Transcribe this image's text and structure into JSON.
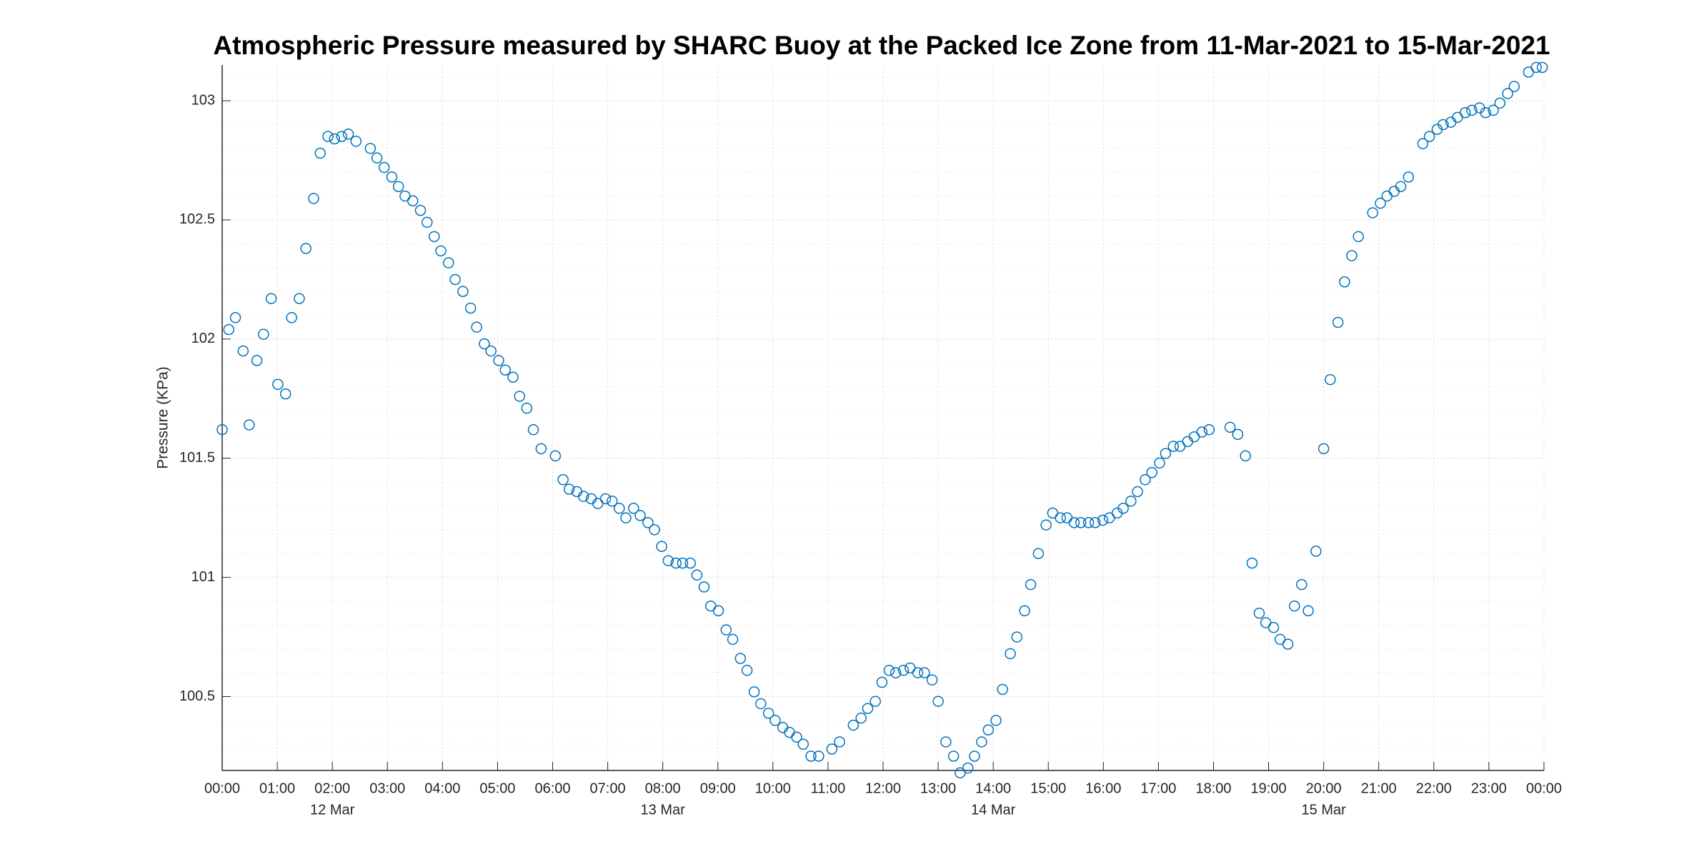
{
  "chart_data": {
    "type": "scatter",
    "title": "Atmospheric Pressure measured by SHARC Buoy at the Packed Ice Zone from 11-Mar-2021 to 15-Mar-2021",
    "y_label": "Pressure (KPa)",
    "series": [
      {
        "name": "Pressure",
        "color": "#0072bd",
        "x": [
          0,
          0.12,
          0.24,
          0.38,
          0.49,
          0.63,
          0.75,
          0.89,
          1.01,
          1.15,
          1.26,
          1.4,
          1.52,
          1.66,
          1.78,
          1.92,
          2.04,
          2.17,
          2.29,
          2.43,
          2.69,
          2.81,
          2.94,
          3.08,
          3.2,
          3.32,
          3.46,
          3.6,
          3.72,
          3.85,
          3.97,
          4.11,
          4.23,
          4.37,
          4.51,
          4.62,
          4.76,
          4.88,
          5.02,
          5.14,
          5.28,
          5.4,
          5.53,
          5.65,
          5.79,
          6.05,
          6.19,
          6.3,
          6.44,
          6.56,
          6.7,
          6.82,
          6.96,
          7.08,
          7.21,
          7.33,
          7.47,
          7.59,
          7.73,
          7.85,
          7.98,
          8.1,
          8.24,
          8.36,
          8.5,
          8.62,
          8.75,
          8.87,
          9.01,
          9.15,
          9.27,
          9.41,
          9.53,
          9.66,
          9.78,
          9.92,
          10.04,
          10.18,
          10.3,
          10.43,
          10.55,
          10.69,
          10.83,
          11.07,
          11.21,
          11.46,
          11.6,
          11.72,
          11.86,
          11.98,
          12.11,
          12.23,
          12.37,
          12.49,
          12.63,
          12.75,
          12.89,
          13.0,
          13.14,
          13.28,
          13.4,
          13.54,
          13.66,
          13.79,
          13.91,
          14.05,
          14.17,
          14.31,
          14.43,
          14.57,
          14.68,
          14.82,
          14.96,
          15.08,
          15.22,
          15.34,
          15.47,
          15.59,
          15.73,
          15.85,
          15.99,
          16.11,
          16.25,
          16.36,
          16.5,
          16.62,
          16.76,
          16.88,
          17.02,
          17.13,
          17.27,
          17.39,
          17.53,
          17.65,
          17.79,
          17.92,
          18.3,
          18.44,
          18.58,
          18.7,
          18.83,
          18.95,
          19.09,
          19.21,
          19.35,
          19.47,
          19.6,
          19.72,
          19.86,
          20.0,
          20.12,
          20.26,
          20.38,
          20.51,
          20.63,
          20.89,
          21.03,
          21.15,
          21.28,
          21.4,
          21.54,
          21.8,
          21.92,
          22.06,
          22.17,
          22.31,
          22.43,
          22.57,
          22.69,
          22.83,
          22.94,
          23.08,
          23.2,
          23.34,
          23.46,
          23.72,
          23.86,
          23.97
        ],
        "values": [
          101.62,
          102.04,
          102.09,
          101.95,
          101.64,
          101.91,
          102.02,
          102.17,
          101.81,
          101.77,
          102.09,
          102.17,
          102.38,
          102.59,
          102.78,
          102.85,
          102.84,
          102.85,
          102.86,
          102.83,
          102.8,
          102.76,
          102.72,
          102.68,
          102.64,
          102.6,
          102.58,
          102.54,
          102.49,
          102.43,
          102.37,
          102.32,
          102.25,
          102.2,
          102.13,
          102.05,
          101.98,
          101.95,
          101.91,
          101.87,
          101.84,
          101.76,
          101.71,
          101.62,
          101.54,
          101.51,
          101.41,
          101.37,
          101.36,
          101.34,
          101.33,
          101.31,
          101.33,
          101.32,
          101.29,
          101.25,
          101.29,
          101.26,
          101.23,
          101.2,
          101.13,
          101.07,
          101.06,
          101.06,
          101.06,
          101.01,
          100.96,
          100.88,
          100.86,
          100.78,
          100.74,
          100.66,
          100.61,
          100.52,
          100.47,
          100.43,
          100.4,
          100.37,
          100.35,
          100.33,
          100.3,
          100.25,
          100.25,
          100.28,
          100.31,
          100.38,
          100.41,
          100.45,
          100.48,
          100.56,
          100.61,
          100.6,
          100.61,
          100.62,
          100.6,
          100.6,
          100.57,
          100.48,
          100.31,
          100.25,
          100.18,
          100.2,
          100.25,
          100.31,
          100.36,
          100.4,
          100.53,
          100.68,
          100.75,
          100.86,
          100.97,
          101.1,
          101.22,
          101.27,
          101.25,
          101.25,
          101.23,
          101.23,
          101.23,
          101.23,
          101.24,
          101.25,
          101.27,
          101.29,
          101.32,
          101.36,
          101.41,
          101.44,
          101.48,
          101.52,
          101.55,
          101.55,
          101.57,
          101.59,
          101.61,
          101.62,
          101.63,
          101.6,
          101.51,
          101.06,
          100.85,
          100.81,
          100.79,
          100.74,
          100.72,
          100.88,
          100.97,
          100.86,
          101.11,
          101.54,
          101.83,
          102.07,
          102.24,
          102.35,
          102.43,
          102.53,
          102.57,
          102.6,
          102.62,
          102.64,
          102.68,
          102.82,
          102.85,
          102.88,
          102.9,
          102.91,
          102.93,
          102.95,
          102.96,
          102.97,
          102.95,
          102.96,
          102.99,
          103.03,
          103.06,
          103.12,
          103.14,
          103.14
        ]
      }
    ],
    "xlim": [
      0,
      24
    ],
    "xticks": [
      {
        "value": 0,
        "label": "00:00"
      },
      {
        "value": 1,
        "label": "01:00"
      },
      {
        "value": 2,
        "label": "02:00"
      },
      {
        "value": 3,
        "label": "03:00"
      },
      {
        "value": 4,
        "label": "04:00"
      },
      {
        "value": 5,
        "label": "05:00"
      },
      {
        "value": 6,
        "label": "06:00"
      },
      {
        "value": 7,
        "label": "07:00"
      },
      {
        "value": 8,
        "label": "08:00"
      },
      {
        "value": 9,
        "label": "09:00"
      },
      {
        "value": 10,
        "label": "10:00"
      },
      {
        "value": 11,
        "label": "11:00"
      },
      {
        "value": 12,
        "label": "12:00"
      },
      {
        "value": 13,
        "label": "13:00"
      },
      {
        "value": 14,
        "label": "14:00"
      },
      {
        "value": 15,
        "label": "15:00"
      },
      {
        "value": 16,
        "label": "16:00"
      },
      {
        "value": 17,
        "label": "17:00"
      },
      {
        "value": 18,
        "label": "18:00"
      },
      {
        "value": 19,
        "label": "19:00"
      },
      {
        "value": 20,
        "label": "20:00"
      },
      {
        "value": 21,
        "label": "21:00"
      },
      {
        "value": 22,
        "label": "22:00"
      },
      {
        "value": 23,
        "label": "23:00"
      },
      {
        "value": 24,
        "label": "00:00"
      }
    ],
    "xtick_dates": [
      {
        "value": 2,
        "label": "12 Mar"
      },
      {
        "value": 8,
        "label": "13 Mar"
      },
      {
        "value": 14,
        "label": "14 Mar"
      },
      {
        "value": 20,
        "label": "15 Mar"
      }
    ],
    "ylim": [
      100.19,
      103.15
    ],
    "yticks": [
      100.5,
      101,
      101.5,
      102,
      102.5,
      103
    ],
    "grid": true,
    "minor_grid": true
  }
}
